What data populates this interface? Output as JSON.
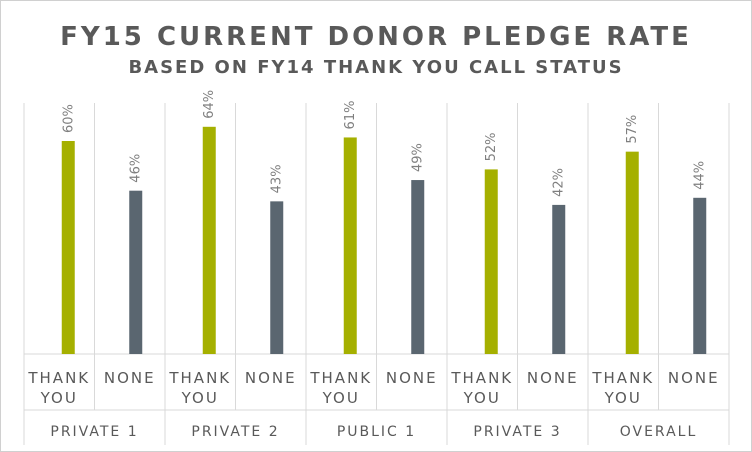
{
  "chart_data": {
    "type": "bar",
    "title": "FY15 CURRENT DONOR PLEDGE RATE",
    "subtitle": "BASED ON FY14 THANK YOU CALL STATUS",
    "groups": [
      "PRIVATE 1",
      "PRIVATE 2",
      "PUBLIC 1",
      "PRIVATE 3",
      "OVERALL"
    ],
    "subcategories": [
      [
        "THANK",
        "YOU"
      ],
      [
        "NONE"
      ]
    ],
    "series": [
      {
        "values": [
          60,
          64,
          61,
          52,
          57
        ],
        "color": "#a5b000"
      },
      {
        "values": [
          46,
          43,
          49,
          42,
          44
        ],
        "color": "#5a6670"
      }
    ],
    "value_suffix": "%",
    "ylim": [
      0,
      70
    ],
    "grid": false
  }
}
